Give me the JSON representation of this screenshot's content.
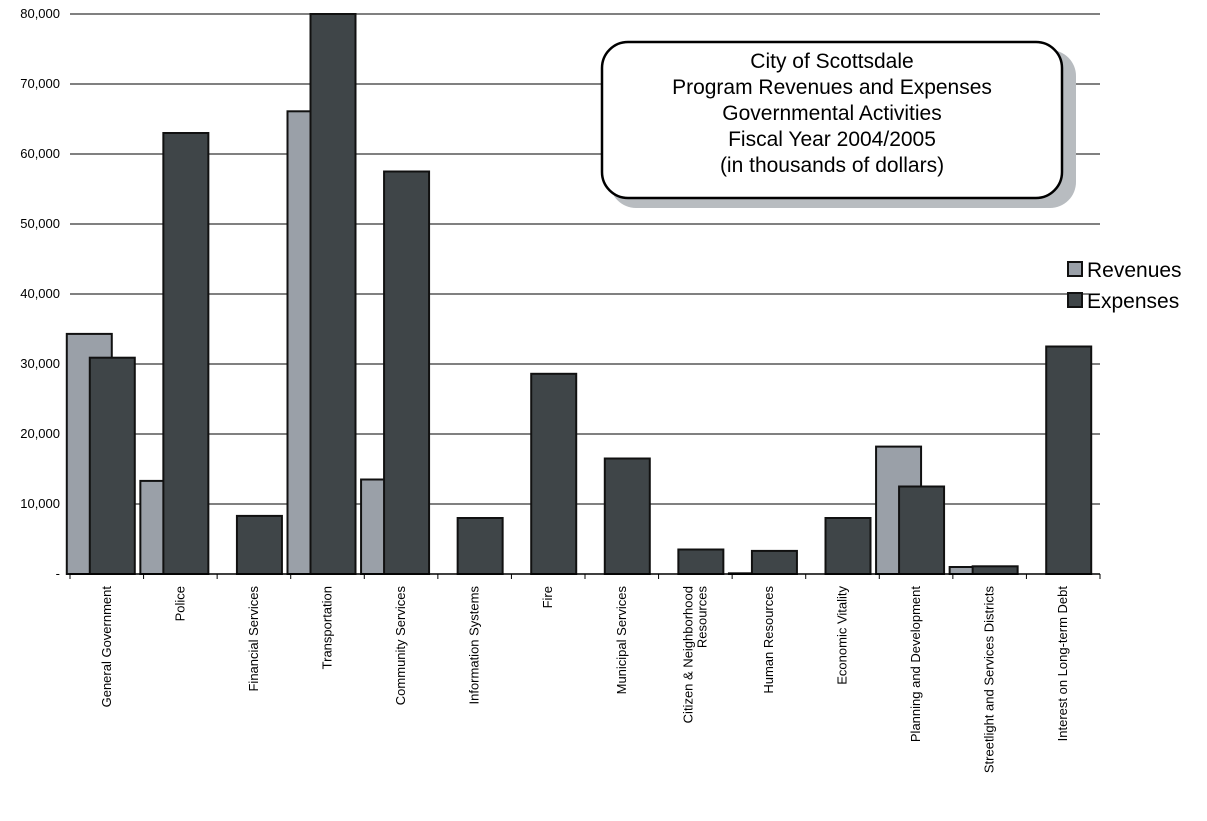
{
  "chart_data": {
    "type": "bar",
    "title_lines": [
      "City of Scottsdale",
      "Program Revenues and Expenses",
      "Governmental Activities",
      "Fiscal Year 2004/2005",
      "(in thousands of dollars)"
    ],
    "categories": [
      [
        "General Government"
      ],
      [
        "Police"
      ],
      [
        "Financial Services"
      ],
      [
        "Transportation"
      ],
      [
        "Community Services"
      ],
      [
        "Information Systems"
      ],
      [
        "Fire"
      ],
      [
        "Municipal Services"
      ],
      [
        "Citizen & Neighborhood",
        "Resources"
      ],
      [
        "Human Resources"
      ],
      [
        "Economic Vitality"
      ],
      [
        "Planning and Development"
      ],
      [
        "Streetlight and Services Districts"
      ],
      [
        "Interest on Long-term Debt"
      ]
    ],
    "series": [
      {
        "name": "Revenues",
        "color": "#9aa0a8",
        "values": [
          34300,
          13300,
          0,
          66100,
          13500,
          0,
          0,
          0,
          0,
          100,
          0,
          18200,
          1000,
          0
        ]
      },
      {
        "name": "Expenses",
        "color": "#3f4548",
        "values": [
          30900,
          63000,
          8300,
          80200,
          57500,
          8000,
          28600,
          16500,
          3500,
          3300,
          8000,
          12500,
          1100,
          32500
        ]
      }
    ],
    "yticks": [
      "-",
      "10,000",
      "20,000",
      "30,000",
      "40,000",
      "50,000",
      "60,000",
      "70,000",
      "80,000"
    ],
    "ylim": [
      0,
      80000
    ],
    "grid": true,
    "legend_position": "right"
  }
}
